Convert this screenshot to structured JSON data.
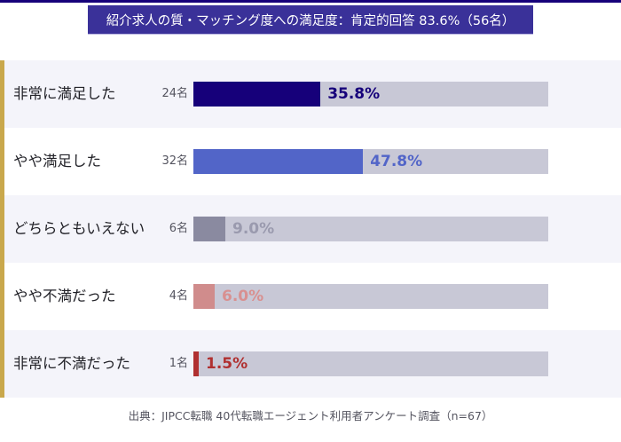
{
  "chart_data": {
    "type": "bar",
    "orientation": "horizontal",
    "title": "紹介求人の質・マッチング度への満足度：肯定的回答 83.6%（56名）",
    "categories": [
      "非常に満足した",
      "やや満足した",
      "どちらともいえない",
      "やや不満だった",
      "非常に不満だった"
    ],
    "counts": [
      "24名",
      "32名",
      "6名",
      "4名",
      "1名"
    ],
    "values": [
      35.8,
      47.8,
      9.0,
      6.0,
      1.5
    ],
    "value_labels": [
      "35.8%",
      "47.8%",
      "9.0%",
      "6.0%",
      "1.5%"
    ],
    "xlim": [
      0,
      100
    ],
    "colors": [
      "#16007a",
      "#5265c8",
      "#8a8aa0",
      "#d08c8c",
      "#b03030"
    ],
    "label_colors": [
      "#16007a",
      "#5265c8",
      "#9a9aae",
      "#d89090",
      "#b03030"
    ],
    "track_color": "#c8c8d6",
    "source": "出典：JIPCC転職 40代転職エージェント利用者アンケート調査（n=67）"
  },
  "theme": {
    "title_bg": "#3a3199",
    "accent_strip": "#c9a84c"
  }
}
